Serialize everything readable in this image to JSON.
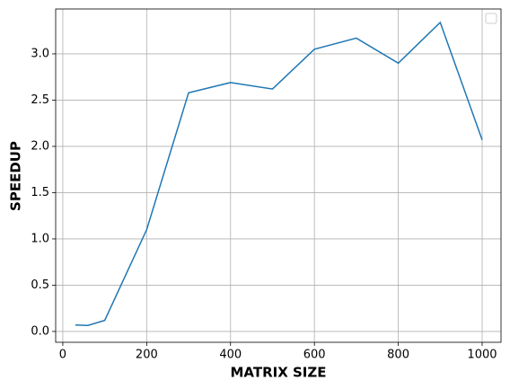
{
  "chart_data": {
    "type": "line",
    "x_label": "MATRIX SIZE",
    "y_label": "SPEEDUP",
    "x": [
      30,
      60,
      100,
      200,
      300,
      400,
      500,
      600,
      700,
      800,
      900,
      1000
    ],
    "series": [
      {
        "color": "#1f77b4",
        "values": [
          0.07,
          0.065,
          0.12,
          1.1,
          2.58,
          2.69,
          2.62,
          3.05,
          3.17,
          2.9,
          3.34,
          2.07
        ]
      }
    ],
    "xlim": [
      -17,
      1045
    ],
    "ylim": [
      -0.117,
      3.485
    ],
    "xticks": [
      0,
      200,
      400,
      600,
      800,
      1000
    ],
    "yticks": [
      {
        "value": 0,
        "label": "0.0"
      },
      {
        "value": 0.5,
        "label": "0.5"
      },
      {
        "value": 1,
        "label": "1.0"
      },
      {
        "value": 1.5,
        "label": "1.5"
      },
      {
        "value": 2,
        "label": "2.0"
      },
      {
        "value": 2.5,
        "label": "2.5"
      },
      {
        "value": 3,
        "label": "3.0"
      }
    ],
    "grid": true
  }
}
